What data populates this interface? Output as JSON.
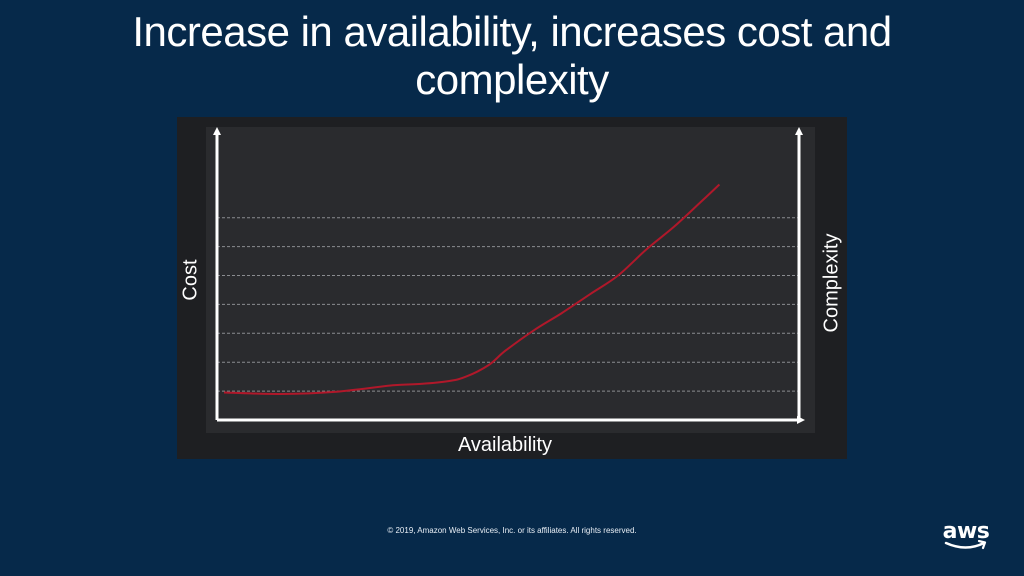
{
  "slide": {
    "title": "Increase in availability, increases cost and complexity",
    "footer": "© 2019, Amazon Web Services, Inc. or its affiliates. All rights reserved.",
    "logo_text": "aws"
  },
  "colors": {
    "background": "#06294a",
    "chart_background": "#252629",
    "curve": "#b0182a",
    "axis": "#ffffff",
    "gridline": "#8a8c90"
  },
  "chart_data": {
    "type": "line",
    "title": "",
    "xlabel": "Availability",
    "ylabel": "Cost",
    "y2label": "Complexity",
    "xlim": [
      0,
      100
    ],
    "ylim": [
      0,
      100
    ],
    "grid": true,
    "gridline_values": [
      10,
      20,
      30,
      40,
      50,
      60,
      70
    ],
    "series": [
      {
        "x": [
          0,
          10,
          20,
          30,
          35,
          40,
          43,
          47,
          50,
          55,
          60,
          65,
          70,
          75,
          80,
          85,
          88
        ],
        "y": [
          9.5,
          9.0,
          9.8,
          12.0,
          12.5,
          13.5,
          15.0,
          19.0,
          24.0,
          31.0,
          37.0,
          43.5,
          50.0,
          59.0,
          67.0,
          76.0,
          81.5
        ]
      }
    ]
  }
}
